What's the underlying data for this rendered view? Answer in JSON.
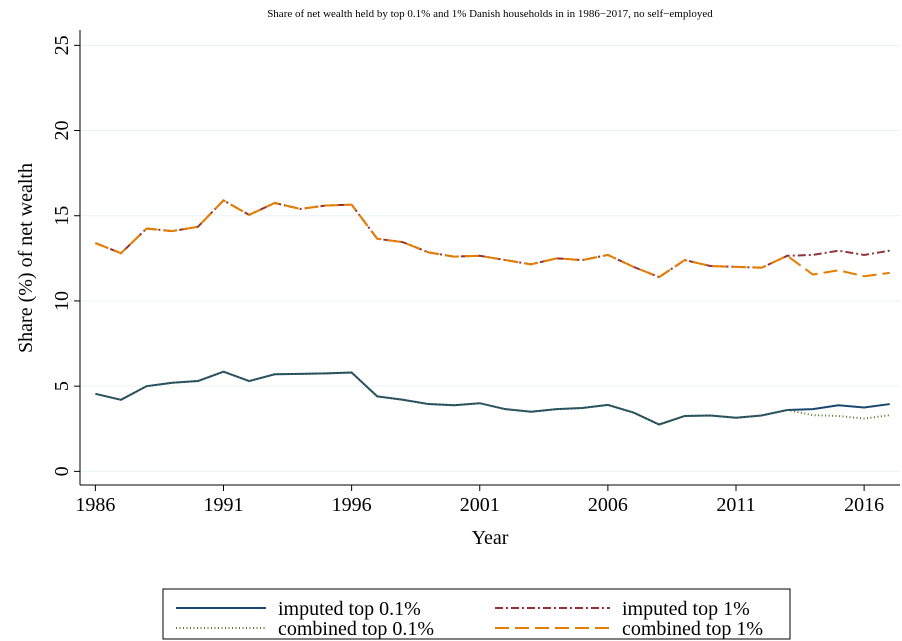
{
  "chart_data": {
    "type": "line",
    "title": "Share of net wealth held by top 0.1% and 1% Danish households in in 1986−2017, no self−employed",
    "x_label": "Year",
    "y_label": "Share (%) of net wealth",
    "x": [
      1986,
      1987,
      1988,
      1989,
      1990,
      1991,
      1992,
      1993,
      1994,
      1995,
      1996,
      1997,
      1998,
      1999,
      2000,
      2001,
      2002,
      2003,
      2004,
      2005,
      2006,
      2007,
      2008,
      2009,
      2010,
      2011,
      2012,
      2013,
      2014,
      2015,
      2016,
      2017
    ],
    "series": [
      {
        "name": "imputed top 0.1%",
        "color": "#1a476f",
        "dash": "none",
        "values": [
          4.55,
          4.2,
          5.0,
          5.2,
          5.3,
          5.85,
          5.3,
          5.7,
          5.72,
          5.75,
          5.8,
          4.4,
          4.2,
          3.95,
          3.88,
          4.0,
          3.65,
          3.5,
          3.65,
          3.72,
          3.9,
          3.45,
          2.75,
          3.25,
          3.28,
          3.15,
          3.28,
          3.6,
          3.65,
          3.88,
          3.75,
          3.95
        ]
      },
      {
        "name": "imputed top 1%",
        "color": "#90353b",
        "dash": "8,3,2,3",
        "values": [
          13.4,
          12.8,
          14.25,
          14.1,
          14.35,
          15.9,
          15.05,
          15.75,
          15.4,
          15.6,
          15.65,
          13.65,
          13.45,
          12.85,
          12.6,
          12.65,
          12.4,
          12.15,
          12.5,
          12.4,
          12.7,
          12.0,
          11.4,
          12.4,
          12.05,
          12.0,
          11.95,
          12.65,
          12.7,
          12.95,
          12.7,
          12.95
        ]
      },
      {
        "name": "combined top 0.1%",
        "color": "#55752f",
        "dash": "1,2.5",
        "values": [
          4.55,
          4.2,
          5.0,
          5.2,
          5.3,
          5.85,
          5.3,
          5.7,
          5.72,
          5.75,
          5.8,
          4.4,
          4.2,
          3.95,
          3.88,
          4.0,
          3.65,
          3.5,
          3.65,
          3.72,
          3.9,
          3.45,
          2.75,
          3.25,
          3.28,
          3.15,
          3.28,
          3.6,
          3.3,
          3.25,
          3.1,
          3.3
        ]
      },
      {
        "name": "combined top 1%",
        "color": "#e37e00",
        "dash": "14,6",
        "values": [
          13.4,
          12.8,
          14.25,
          14.1,
          14.35,
          15.9,
          15.05,
          15.75,
          15.4,
          15.6,
          15.65,
          13.65,
          13.45,
          12.85,
          12.6,
          12.65,
          12.4,
          12.15,
          12.5,
          12.4,
          12.7,
          12.0,
          11.4,
          12.4,
          12.05,
          12.0,
          11.95,
          12.65,
          11.55,
          11.8,
          11.45,
          11.65
        ]
      }
    ],
    "xlim": [
      1985.4,
      2017.4
    ],
    "xticks": [
      1986,
      1991,
      1996,
      2001,
      2006,
      2011,
      2016
    ],
    "ylim": [
      -0.8,
      25.9
    ],
    "yticks": [
      0,
      5,
      10,
      15,
      20,
      25
    ],
    "grid": true
  }
}
